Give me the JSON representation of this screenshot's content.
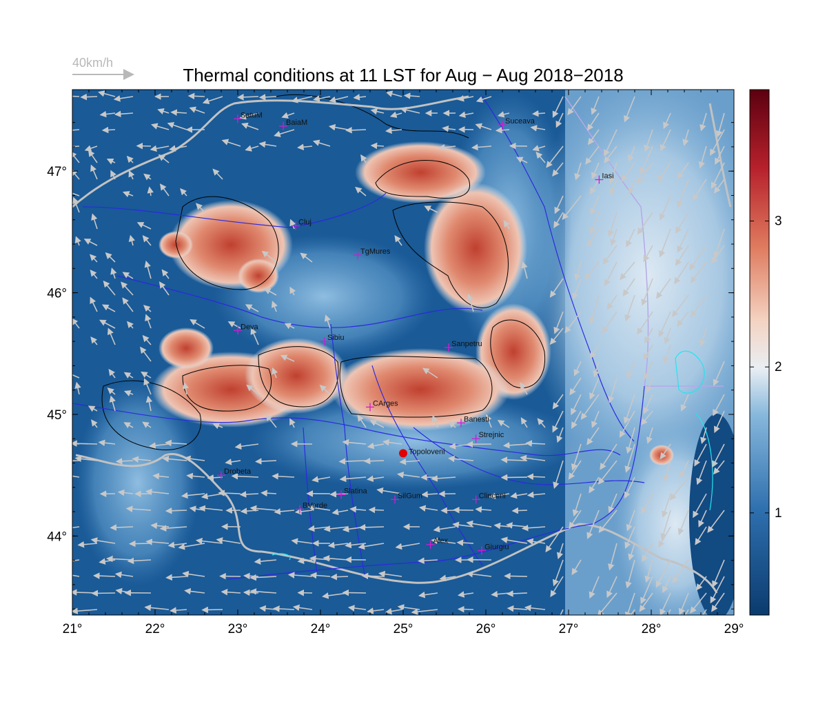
{
  "title": "Thermal conditions at 11 LST for Aug − Aug  2018−2018",
  "wind_scale_label": "40km/h",
  "x_ticks": [
    "21°",
    "22°",
    "23°",
    "24°",
    "25°",
    "26°",
    "27°",
    "28°",
    "29°"
  ],
  "y_ticks": [
    "44°",
    "45°",
    "46°",
    "47°"
  ],
  "colorbar_ticks": [
    "1",
    "2",
    "3"
  ],
  "map_extent": {
    "lon_min": 21,
    "lon_max": 29,
    "lat_min": 43.35,
    "lat_max": 47.67
  },
  "colorbar_range": [
    0.3,
    3.9
  ],
  "colors": {
    "low": "#0f4c84",
    "mid_low": "#4f8fc2",
    "mid": "#f3f3f3",
    "mid_high": "#e7896c",
    "high": "#6b0014",
    "river": "#2a2ae0",
    "border": "#c2c2c2",
    "city_marker": "#d21bd2",
    "contour": "#000000",
    "arrow": "#c8c8c8",
    "highlight": "#e20000",
    "lake": "#22e5f0"
  },
  "cities": [
    {
      "name": "SatuM",
      "lon": 23.0,
      "lat": 47.43
    },
    {
      "name": "BaiaM",
      "lon": 23.55,
      "lat": 47.37
    },
    {
      "name": "Suceava",
      "lon": 26.2,
      "lat": 47.38
    },
    {
      "name": "Iasi",
      "lon": 27.37,
      "lat": 46.93
    },
    {
      "name": "Cluj",
      "lon": 23.7,
      "lat": 46.55
    },
    {
      "name": "TgMures",
      "lon": 24.45,
      "lat": 46.31
    },
    {
      "name": "Deva",
      "lon": 23.0,
      "lat": 45.69
    },
    {
      "name": "Sibiu",
      "lon": 24.05,
      "lat": 45.6
    },
    {
      "name": "Sanpetru",
      "lon": 25.55,
      "lat": 45.55
    },
    {
      "name": "CArges",
      "lon": 24.6,
      "lat": 45.06
    },
    {
      "name": "Banesti",
      "lon": 25.7,
      "lat": 44.93
    },
    {
      "name": "Strejnic",
      "lon": 25.88,
      "lat": 44.8
    },
    {
      "name": "Drobeta",
      "lon": 22.8,
      "lat": 44.5
    },
    {
      "name": "Slatina",
      "lon": 24.25,
      "lat": 44.34
    },
    {
      "name": "SilGum",
      "lon": 24.9,
      "lat": 44.3
    },
    {
      "name": "Clinceni",
      "lon": 25.88,
      "lat": 44.3
    },
    {
      "name": "BVerde",
      "lon": 23.75,
      "lat": 44.22
    },
    {
      "name": "Alex",
      "lon": 25.33,
      "lat": 43.93
    },
    {
      "name": "Giurgiu",
      "lon": 25.95,
      "lat": 43.88
    }
  ],
  "highlight_site": {
    "name": "Topoloveni",
    "lon": 25.0,
    "lat": 44.68
  }
}
